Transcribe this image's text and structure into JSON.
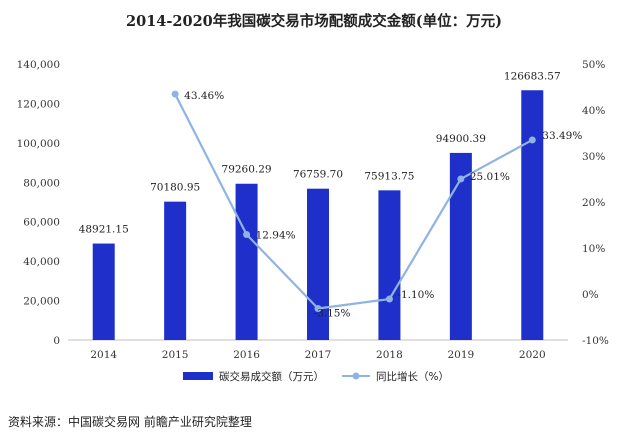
{
  "chart_data": {
    "type": "bar+line",
    "title": "2014-2020年我国碳交易市场配额成交金额(单位：万元)",
    "categories": [
      "2014",
      "2015",
      "2016",
      "2017",
      "2018",
      "2019",
      "2020"
    ],
    "series": [
      {
        "name": "碳交易成交额（万元）",
        "type": "bar",
        "axis": "left",
        "color": "#1f2fc9",
        "values": [
          48921.15,
          70180.95,
          79260.29,
          76759.7,
          75913.75,
          94900.39,
          126683.57
        ],
        "labels": [
          "48921.15",
          "70180.95",
          "79260.29",
          "76759.70",
          "75913.75",
          "94900.39",
          "126683.57"
        ]
      },
      {
        "name": "同比增长（%）",
        "type": "line",
        "axis": "right",
        "color": "#8fb4e3",
        "values": [
          null,
          43.46,
          12.94,
          -3.15,
          -1.1,
          25.01,
          33.49
        ],
        "labels": [
          "",
          "43.46%",
          "12.94%",
          "-3.15%",
          "-1.10%",
          "25.01%",
          "33.49%"
        ]
      }
    ],
    "y_left": {
      "min": 0,
      "max": 140000,
      "ticks": [
        "0",
        "20,000",
        "40,000",
        "60,000",
        "80,000",
        "100,000",
        "120,000",
        "140,000"
      ]
    },
    "y_right": {
      "min": -10,
      "max": 50,
      "ticks": [
        "-10%",
        "0%",
        "10%",
        "20%",
        "30%",
        "40%",
        "50%"
      ]
    },
    "legend_position": "bottom-center"
  },
  "source": "资料来源：中国碳交易网 前瞻产业研究院整理"
}
